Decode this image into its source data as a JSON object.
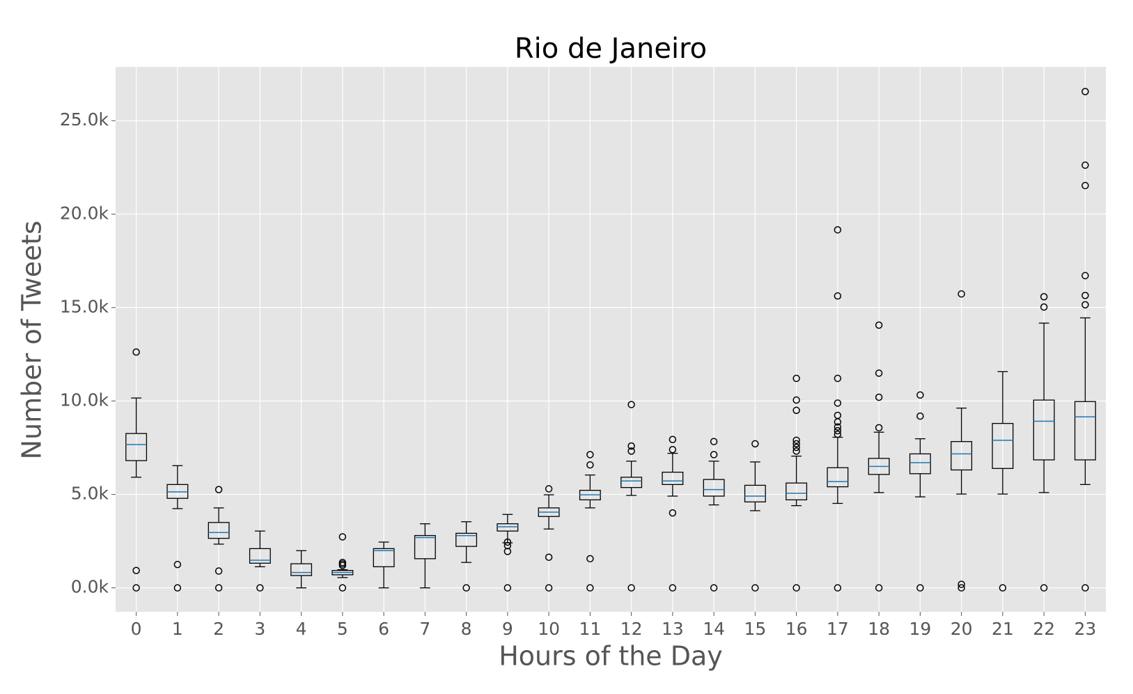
{
  "chart_data": {
    "type": "box",
    "title": "Rio de Janeiro",
    "x_label": "Hours of the Day",
    "y_label": "Number of Tweets",
    "categories": [
      "0",
      "1",
      "2",
      "3",
      "4",
      "5",
      "6",
      "7",
      "8",
      "9",
      "10",
      "11",
      "12",
      "13",
      "14",
      "15",
      "16",
      "17",
      "18",
      "19",
      "20",
      "21",
      "22",
      "23"
    ],
    "box_color": "#000000",
    "median_color": "#1f77b4",
    "background": "#e5e5e5",
    "grid": true,
    "ylim": [
      -1280,
      27880
    ],
    "yticks": [
      {
        "value": 0,
        "label": "0.0k"
      },
      {
        "value": 5000,
        "label": "5.0k"
      },
      {
        "value": 10000,
        "label": "10.0k"
      },
      {
        "value": 15000,
        "label": "15.0k"
      },
      {
        "value": 20000,
        "label": "20.0k"
      },
      {
        "value": 25000,
        "label": "25.0k"
      }
    ],
    "low": [
      5920,
      4240,
      2340,
      1130,
      0,
      550,
      0,
      0,
      1360,
      2410,
      3150,
      4280,
      4950,
      4910,
      4440,
      4130,
      4400,
      4520,
      5100,
      4870,
      5020,
      5020,
      5100,
      5530
    ],
    "q1": [
      6810,
      4790,
      2650,
      1320,
      660,
      700,
      1130,
      1560,
      2220,
      3040,
      3820,
      4710,
      5370,
      5530,
      4910,
      4600,
      4710,
      5410,
      6070,
      6110,
      6310,
      6390,
      6850,
      6850
    ],
    "median": [
      7670,
      5140,
      2960,
      1480,
      820,
      820,
      1990,
      2690,
      2800,
      3270,
      4050,
      4980,
      5720,
      5720,
      5260,
      4910,
      5060,
      5690,
      6500,
      6700,
      7170,
      7900,
      8920,
      9150
    ],
    "q3": [
      8260,
      5530,
      3500,
      2100,
      1290,
      930,
      2100,
      2800,
      2920,
      3430,
      4280,
      5220,
      5920,
      6190,
      5800,
      5490,
      5610,
      6430,
      6930,
      7170,
      7830,
      8800,
      10050,
      9970
    ],
    "high": [
      10160,
      6540,
      4280,
      3040,
      1990,
      970,
      2450,
      3430,
      3540,
      3930,
      4980,
      6040,
      6780,
      7200,
      6780,
      6740,
      7050,
      8060,
      8330,
      7980,
      9620,
      11570,
      14170,
      14450
    ],
    "outliers": [
      [
        12620,
        930,
        0
      ],
      [
        1250,
        0
      ],
      [
        5260,
        900,
        0
      ],
      [
        0
      ],
      [],
      [
        1360,
        1280,
        1200,
        2730,
        0
      ],
      [],
      [],
      [
        0
      ],
      [
        2450,
        2260,
        1950,
        0
      ],
      [
        5300,
        1640,
        0
      ],
      [
        6580,
        7130,
        1560,
        0
      ],
      [
        7320,
        7590,
        9810,
        0
      ],
      [
        7400,
        7940,
        4010,
        0
      ],
      [
        7130,
        7830,
        0
      ],
      [
        7710,
        0
      ],
      [
        7320,
        7520,
        7710,
        7900,
        9500,
        10050,
        11210,
        0
      ],
      [
        8220,
        8410,
        8610,
        8880,
        9230,
        9890,
        11210,
        15620,
        19160,
        0
      ],
      [
        8570,
        10200,
        11490,
        14060,
        0
      ],
      [
        9190,
        10320,
        0
      ],
      [
        15730,
        190,
        0
      ],
      [
        0
      ],
      [
        15030,
        15580,
        0
      ],
      [
        15150,
        15650,
        16710,
        21530,
        22620,
        26560,
        0
      ]
    ]
  }
}
